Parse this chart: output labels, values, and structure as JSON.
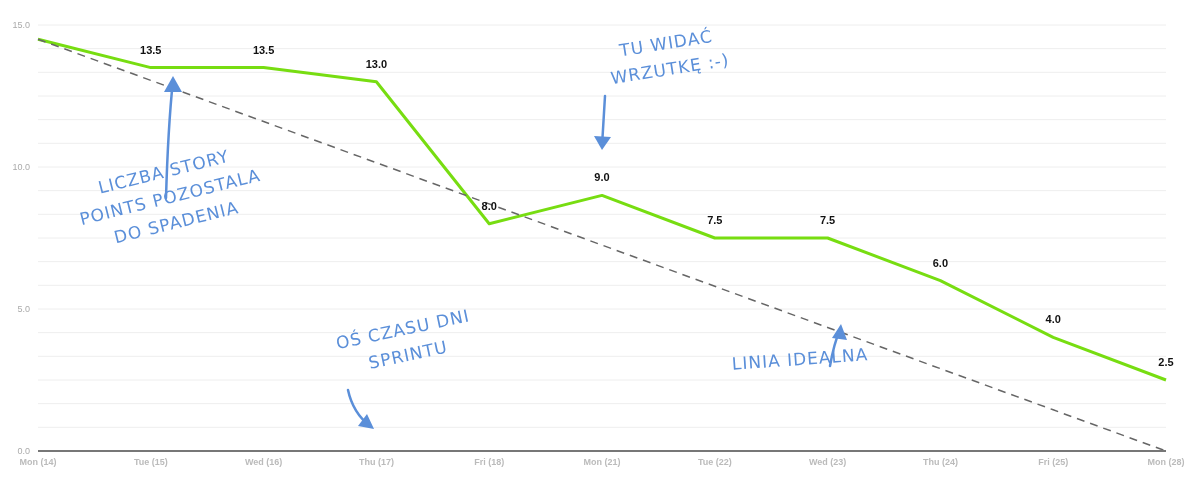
{
  "chart_data": {
    "type": "line",
    "categories": [
      "Mon (14)",
      "Tue (15)",
      "Wed (16)",
      "Thu (17)",
      "Fri (18)",
      "Mon (21)",
      "Tue (22)",
      "Wed (23)",
      "Thu (24)",
      "Fri (25)",
      "Mon (28)"
    ],
    "series": [
      {
        "color": "#77dd11",
        "line_style": "solid",
        "values": [
          14.5,
          13.5,
          13.5,
          13.0,
          8.0,
          9.0,
          7.5,
          7.5,
          6.0,
          4.0,
          2.5
        ],
        "value_labels": [
          null,
          "13.5",
          "13.5",
          "13.0",
          "8.0",
          "9.0",
          "7.5",
          "7.5",
          "6.0",
          "4.0",
          "2.5"
        ]
      },
      {
        "color": "#666666",
        "line_style": "dashed",
        "values": [
          14.5,
          13.05,
          11.6,
          10.15,
          8.7,
          7.25,
          5.8,
          4.35,
          2.9,
          1.45,
          0
        ]
      }
    ],
    "ylim": [
      0,
      15
    ],
    "yticks": [
      {
        "value": 0,
        "label": "0.0"
      },
      {
        "value": 0.833,
        "label": null
      },
      {
        "value": 1.667,
        "label": null
      },
      {
        "value": 2.5,
        "label": null
      },
      {
        "value": 3.333,
        "label": null
      },
      {
        "value": 4.167,
        "label": null
      },
      {
        "value": 5,
        "label": "5.0"
      },
      {
        "value": 5.833,
        "label": null
      },
      {
        "value": 6.667,
        "label": null
      },
      {
        "value": 7.5,
        "label": null
      },
      {
        "value": 8.333,
        "label": null
      },
      {
        "value": 9.167,
        "label": null
      },
      {
        "value": 10,
        "label": "10.0"
      },
      {
        "value": 10.833,
        "label": null
      },
      {
        "value": 11.667,
        "label": null
      },
      {
        "value": 12.5,
        "label": null
      },
      {
        "value": 13.333,
        "label": null
      },
      {
        "value": 14.167,
        "label": null
      },
      {
        "value": 15,
        "label": "15.0"
      }
    ],
    "grid": "y",
    "marker": "none",
    "annotations": [
      "LICZBA STORY POINTS POZOSTALA DO SPADENIA",
      "TU WIDAĆ WRZUTKĘ :-)",
      "OŚ CZASU DNI SPRINTU",
      "LINIA IDEALNA"
    ]
  }
}
